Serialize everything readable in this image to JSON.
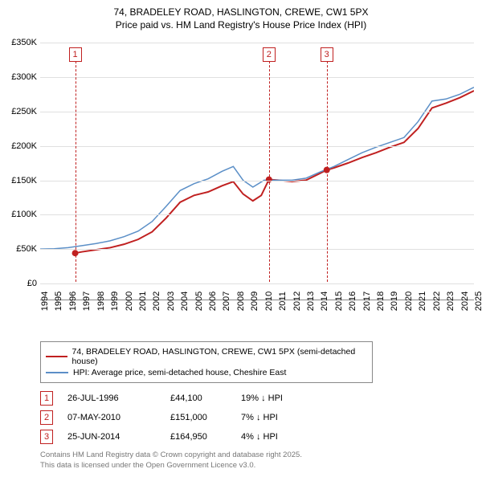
{
  "title_line1": "74, BRADELEY ROAD, HASLINGTON, CREWE, CW1 5PX",
  "title_line2": "Price paid vs. HM Land Registry's House Price Index (HPI)",
  "chart": {
    "type": "line",
    "background_color": "#ffffff",
    "grid_color": "#e0e0e0",
    "axis_color": "#888888",
    "y": {
      "min": 0,
      "max": 350000,
      "step": 50000,
      "labels": [
        "£0",
        "£50K",
        "£100K",
        "£150K",
        "£200K",
        "£250K",
        "£300K",
        "£350K"
      ],
      "fontsize": 11
    },
    "x": {
      "min": 1994,
      "max": 2025,
      "step": 1,
      "labels": [
        "1994",
        "1995",
        "1996",
        "1997",
        "1998",
        "1999",
        "2000",
        "2001",
        "2002",
        "2003",
        "2004",
        "2005",
        "2006",
        "2007",
        "2008",
        "2009",
        "2010",
        "2011",
        "2012",
        "2013",
        "2014",
        "2015",
        "2016",
        "2017",
        "2018",
        "2019",
        "2020",
        "2021",
        "2022",
        "2023",
        "2024",
        "2025"
      ],
      "fontsize": 11
    },
    "series": [
      {
        "name": "74, BRADELEY ROAD, HASLINGTON, CREWE, CW1 5PX (semi-detached house)",
        "color": "#c02020",
        "line_width": 2,
        "points": [
          [
            1996.5,
            44100
          ],
          [
            1997,
            46000
          ],
          [
            1998,
            49000
          ],
          [
            1999,
            52000
          ],
          [
            2000,
            57000
          ],
          [
            2001,
            64000
          ],
          [
            2002,
            75000
          ],
          [
            2003,
            95000
          ],
          [
            2004,
            118000
          ],
          [
            2005,
            128000
          ],
          [
            2006,
            133000
          ],
          [
            2007,
            142000
          ],
          [
            2007.8,
            148000
          ],
          [
            2008.5,
            130000
          ],
          [
            2009.2,
            120000
          ],
          [
            2009.8,
            128000
          ],
          [
            2010.35,
            151000
          ],
          [
            2011,
            150000
          ],
          [
            2012,
            148000
          ],
          [
            2013,
            150000
          ],
          [
            2014,
            160000
          ],
          [
            2014.48,
            164950
          ],
          [
            2015,
            168000
          ],
          [
            2016,
            175000
          ],
          [
            2017,
            183000
          ],
          [
            2018,
            190000
          ],
          [
            2019,
            198000
          ],
          [
            2020,
            205000
          ],
          [
            2021,
            225000
          ],
          [
            2022,
            255000
          ],
          [
            2023,
            262000
          ],
          [
            2024,
            270000
          ],
          [
            2025,
            280000
          ]
        ]
      },
      {
        "name": "HPI: Average price, semi-detached house, Cheshire East",
        "color": "#5b8fc7",
        "line_width": 1.5,
        "points": [
          [
            1994,
            50000
          ],
          [
            1995,
            50500
          ],
          [
            1996,
            52000
          ],
          [
            1997,
            55000
          ],
          [
            1998,
            58000
          ],
          [
            1999,
            62000
          ],
          [
            2000,
            68000
          ],
          [
            2001,
            76000
          ],
          [
            2002,
            90000
          ],
          [
            2003,
            112000
          ],
          [
            2004,
            135000
          ],
          [
            2005,
            145000
          ],
          [
            2006,
            152000
          ],
          [
            2007,
            163000
          ],
          [
            2007.8,
            170000
          ],
          [
            2008.5,
            150000
          ],
          [
            2009.2,
            140000
          ],
          [
            2010,
            150000
          ],
          [
            2011,
            150000
          ],
          [
            2012,
            150000
          ],
          [
            2013,
            153000
          ],
          [
            2014,
            162000
          ],
          [
            2015,
            170000
          ],
          [
            2016,
            180000
          ],
          [
            2017,
            190000
          ],
          [
            2018,
            198000
          ],
          [
            2019,
            205000
          ],
          [
            2020,
            212000
          ],
          [
            2021,
            235000
          ],
          [
            2022,
            265000
          ],
          [
            2023,
            268000
          ],
          [
            2024,
            275000
          ],
          [
            2025,
            285000
          ]
        ]
      }
    ],
    "markers": [
      {
        "num": "1",
        "year": 1996.5
      },
      {
        "num": "2",
        "year": 2010.35
      },
      {
        "num": "3",
        "year": 2014.48
      }
    ],
    "dots": [
      {
        "year": 1996.5,
        "value": 44100
      },
      {
        "year": 2010.35,
        "value": 151000
      },
      {
        "year": 2014.48,
        "value": 164950
      }
    ],
    "marker_line_color": "#c02020"
  },
  "legend": {
    "border_color": "#888888",
    "fontsize": 10.5,
    "items": [
      {
        "color": "#c02020",
        "label": "74, BRADELEY ROAD, HASLINGTON, CREWE, CW1 5PX (semi-detached house)"
      },
      {
        "color": "#5b8fc7",
        "label": "HPI: Average price, semi-detached house, Cheshire East"
      }
    ]
  },
  "events": [
    {
      "num": "1",
      "date": "26-JUL-1996",
      "price": "£44,100",
      "delta": "19% ↓ HPI"
    },
    {
      "num": "2",
      "date": "07-MAY-2010",
      "price": "£151,000",
      "delta": "7% ↓ HPI"
    },
    {
      "num": "3",
      "date": "25-JUN-2014",
      "price": "£164,950",
      "delta": "4% ↓ HPI"
    }
  ],
  "footer_line1": "Contains HM Land Registry data © Crown copyright and database right 2025.",
  "footer_line2": "This data is licensed under the Open Government Licence v3.0."
}
